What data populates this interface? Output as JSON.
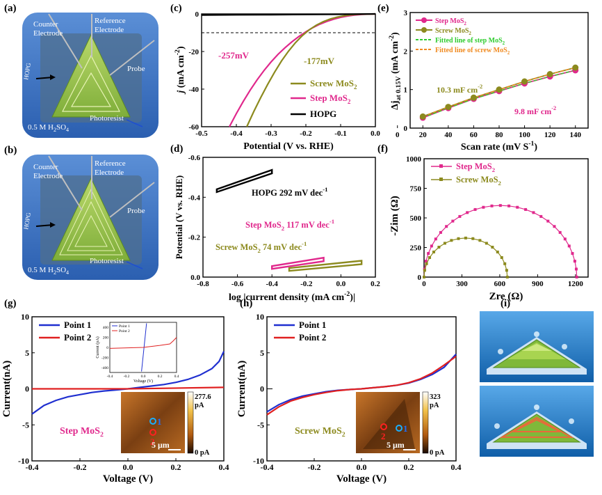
{
  "panel_labels": {
    "a": "(a)",
    "b": "(b)",
    "c": "(c)",
    "d": "(d)",
    "e": "(e)",
    "f": "(f)",
    "g": "(g)",
    "h": "(h)",
    "i": "(i)"
  },
  "cell_a": {
    "counter": "Counter",
    "electrode": "Electrode",
    "reference": "Reference",
    "ref_electrode": "Electrode",
    "probe": "Probe",
    "hopg": "HOPG",
    "photoresist": "Photoresist",
    "electrolyte_a": "0.5 M H",
    "electrolyte_sub": "2",
    "electrolyte_b": "SO",
    "electrolyte_sub2": "4"
  },
  "colors": {
    "step": "#e0288c",
    "screw": "#8c8a1e",
    "hopg": "#000000",
    "blue": "#1f2fd0",
    "red": "#e02020",
    "fit_step": "#2ecc2e",
    "fit_screw": "#f08a20"
  },
  "chart_data": [
    {
      "id": "c",
      "type": "line",
      "xlabel": "Potential (V vs. RHE)",
      "ylabel_main": "j",
      "ylabel_unit": "(mA cm",
      "ylabel_exp": "-2",
      "ylabel_close": ")",
      "xlim": [
        -0.5,
        0.0
      ],
      "ylim": [
        -60,
        0
      ],
      "xticks": [
        "-0.5",
        "-0.4",
        "-0.3",
        "-0.2",
        "-0.1",
        "0.0"
      ],
      "yticks": [
        "0",
        "-20",
        "-40",
        "-60"
      ],
      "annotations": [
        "-257mV",
        "-177mV"
      ],
      "legend": [
        {
          "name": "Screw  MoS",
          "sub": "2"
        },
        {
          "name": "Step  MoS",
          "sub": "2"
        },
        {
          "name": "HOPG",
          "sub": ""
        }
      ],
      "series": [
        {
          "name": "Step MoS2",
          "x": [
            -0.42,
            -0.4,
            -0.38,
            -0.36,
            -0.34,
            -0.32,
            -0.3,
            -0.28,
            -0.26,
            -0.24,
            -0.22,
            -0.2,
            -0.18,
            -0.16,
            -0.14,
            -0.12,
            -0.1,
            -0.08,
            -0.06,
            -0.04,
            -0.02,
            0.0
          ],
          "y": [
            -60,
            -53,
            -46.5,
            -40.5,
            -35,
            -30,
            -25.5,
            -21.5,
            -18,
            -14.8,
            -12,
            -9.5,
            -7.3,
            -5.5,
            -4,
            -2.8,
            -1.8,
            -1.1,
            -0.6,
            -0.3,
            -0.1,
            0
          ]
        },
        {
          "name": "Screw MoS2",
          "x": [
            -0.37,
            -0.35,
            -0.33,
            -0.31,
            -0.29,
            -0.27,
            -0.25,
            -0.23,
            -0.21,
            -0.19,
            -0.17,
            -0.15,
            -0.13,
            -0.11,
            -0.09,
            -0.07,
            -0.05,
            -0.03,
            0.0
          ],
          "y": [
            -60,
            -52,
            -44.5,
            -37.5,
            -31,
            -25,
            -19.8,
            -15.3,
            -11.5,
            -8.4,
            -6,
            -4.1,
            -2.7,
            -1.7,
            -1,
            -0.5,
            -0.2,
            -0.1,
            0
          ]
        },
        {
          "name": "HOPG",
          "x": [
            -0.5,
            -0.4,
            -0.3,
            -0.2,
            -0.1,
            0.0
          ],
          "y": [
            -0.6,
            -0.5,
            -0.4,
            -0.3,
            -0.2,
            0
          ]
        }
      ],
      "dashed_y": -10
    },
    {
      "id": "d",
      "type": "line",
      "xlabel": "log |current density (mA cm",
      "xlabel_exp": "-2",
      "xlabel_close": ")|",
      "ylabel": "Potential (V vs. RHE)",
      "xlim": [
        -0.8,
        0.2
      ],
      "ylim": [
        -0.6,
        0.0
      ],
      "xticks": [
        "-0.8",
        "-0.6",
        "-0.4",
        "-0.2",
        "0.0",
        "0.2"
      ],
      "yticks": [
        "-0.6",
        "-0.4",
        "-0.2",
        "0.0"
      ],
      "annotations": [
        {
          "t": "HOPG 292 mV dec",
          "e": "-1"
        },
        {
          "t": "Step  MoS",
          "s": "2",
          "t2": " 117 mV dec",
          "e": "-1"
        },
        {
          "t": "Screw  MoS",
          "s": "2",
          "t2": " 74 mV dec",
          "e": "-1"
        }
      ],
      "series": [
        {
          "name": "HOPG",
          "x": [
            -0.72,
            -0.4
          ],
          "y": [
            -0.44,
            -0.53
          ]
        },
        {
          "name": "Step MoS2",
          "x": [
            -0.4,
            -0.1
          ],
          "y": [
            -0.055,
            -0.09
          ]
        },
        {
          "name": "Screw MoS2",
          "x": [
            -0.3,
            0.12
          ],
          "y": [
            -0.045,
            -0.075
          ]
        }
      ]
    },
    {
      "id": "e",
      "type": "scatter",
      "xlabel": "Scan rate (mV S",
      "xlabel_exp": "-1",
      "xlabel_close": ")",
      "ylabel_main": "Δj",
      "ylabel_sub": "at 0.15V",
      "ylabel_unit": " (mA cm",
      "ylabel_exp": "-2",
      "ylabel_close": ")",
      "xlim": [
        0,
        150
      ],
      "ylim": [
        0,
        3
      ],
      "xticks": [
        "0",
        "20",
        "40",
        "60",
        "80",
        "100",
        "120",
        "140"
      ],
      "yticks": [
        "0",
        "1",
        "2",
        "3"
      ],
      "annotations": [
        {
          "t": "10.3 mF cm",
          "e": "-2"
        },
        {
          "t": "9.8 mF cm",
          "e": "-2"
        }
      ],
      "legend": [
        {
          "name": "Step MoS",
          "sub": "2"
        },
        {
          "name": "Screw MoS",
          "sub": "2"
        },
        {
          "name": "Fitted line of step MoS",
          "sub": "2"
        },
        {
          "name": "Fitted line of screw MoS",
          "sub": "2"
        }
      ],
      "x": [
        20,
        40,
        60,
        80,
        100,
        120,
        140
      ],
      "series": [
        {
          "name": "Step MoS2",
          "y": [
            0.27,
            0.52,
            0.76,
            0.96,
            1.16,
            1.34,
            1.5
          ]
        },
        {
          "name": "Screw MoS2",
          "y": [
            0.3,
            0.55,
            0.79,
            1.0,
            1.21,
            1.4,
            1.57
          ]
        }
      ]
    },
    {
      "id": "f",
      "type": "scatter",
      "xlabel": "Zre",
      "xlabel_unit": "(Ω)",
      "ylabel": "-Zim",
      "ylabel_unit": "(Ω)",
      "xlim": [
        0,
        1300
      ],
      "ylim": [
        0,
        1000
      ],
      "xticks": [
        "0",
        "300",
        "600",
        "900",
        "1200"
      ],
      "yticks": [
        "0",
        "250",
        "500",
        "750",
        "1000"
      ],
      "legend": [
        {
          "name": "Step MoS",
          "sub": "2"
        },
        {
          "name": "Screw MoS",
          "sub": "2"
        }
      ],
      "series": [
        {
          "name": "Step MoS2",
          "center": 605,
          "radius": 605,
          "npts": 28
        },
        {
          "name": "Screw MoS2",
          "center": 330,
          "radius": 330,
          "npts": 18
        }
      ]
    },
    {
      "id": "g",
      "type": "line",
      "xlabel": "Voltage (V)",
      "ylabel": "Current(nA)",
      "xlim": [
        -0.4,
        0.4
      ],
      "ylim": [
        -10,
        10
      ],
      "xticks": [
        "-0.4",
        "-0.2",
        "0.0",
        "0.2",
        "0.4"
      ],
      "yticks": [
        "10",
        "5",
        "0",
        "-5",
        "-10"
      ],
      "legend": [
        {
          "name": "Point 1"
        },
        {
          "name": "Point 2"
        }
      ],
      "label": {
        "t": "Step MoS",
        "s": "2"
      },
      "series": [
        {
          "name": "Point 1",
          "x": [
            -0.4,
            -0.35,
            -0.3,
            -0.25,
            -0.2,
            -0.15,
            -0.1,
            -0.05,
            0.0,
            0.05,
            0.1,
            0.15,
            0.2,
            0.25,
            0.3,
            0.35,
            0.38,
            0.4
          ],
          "y": [
            -3.5,
            -2.3,
            -1.6,
            -1.1,
            -0.8,
            -0.5,
            -0.3,
            -0.15,
            0.0,
            0.2,
            0.4,
            0.6,
            0.9,
            1.3,
            1.9,
            2.8,
            3.8,
            5.2
          ]
        },
        {
          "name": "Point 2",
          "x": [
            -0.4,
            0.0,
            0.4
          ],
          "y": [
            0.0,
            0.0,
            0.2
          ]
        }
      ],
      "inset_plot": {
        "xlabel": "Voltage (V)",
        "ylabel": "Current (pA)",
        "xticks": [
          "-0.4",
          "-0.2",
          "0.0",
          "0.2",
          "0.4"
        ],
        "yticks": [
          "400",
          "200",
          "0",
          "-200",
          "-400"
        ],
        "legend": [
          {
            "name": "Point 1"
          },
          {
            "name": "Point 2"
          }
        ],
        "p1": {
          "x": [
            -0.02,
            0.04
          ],
          "y": [
            -480,
            480
          ]
        },
        "p2": {
          "x": [
            -0.4,
            0.0,
            0.2,
            0.32,
            0.36,
            0.4
          ],
          "y": [
            -20,
            0,
            40,
            70,
            130,
            200
          ]
        }
      },
      "image_inset": {
        "max": "277.6",
        "max_unit": "pA",
        "min": "0 pA",
        "scale": "5 μm",
        "p1": "1",
        "p2": "2"
      }
    },
    {
      "id": "h",
      "type": "line",
      "xlabel": "Voltage (V)",
      "ylabel": "Current(nA)",
      "xlim": [
        -0.4,
        0.4
      ],
      "ylim": [
        -10,
        10
      ],
      "xticks": [
        "-0.4",
        "-0.2",
        "0.0",
        "0.2",
        "0.4"
      ],
      "yticks": [
        "10",
        "5",
        "0",
        "-5",
        "-10"
      ],
      "legend": [
        {
          "name": "Point 1"
        },
        {
          "name": "Point 2"
        }
      ],
      "label": {
        "t": "Screw MoS",
        "s": "2"
      },
      "series": [
        {
          "name": "Point 1",
          "x": [
            -0.4,
            -0.35,
            -0.3,
            -0.25,
            -0.2,
            -0.15,
            -0.1,
            -0.05,
            0.0,
            0.05,
            0.1,
            0.15,
            0.2,
            0.25,
            0.3,
            0.35,
            0.4
          ],
          "y": [
            -3.2,
            -2.2,
            -1.5,
            -1.0,
            -0.7,
            -0.4,
            -0.2,
            -0.1,
            0.0,
            0.15,
            0.3,
            0.5,
            0.8,
            1.3,
            2.0,
            3.0,
            4.8
          ]
        },
        {
          "name": "Point 2",
          "x": [
            -0.4,
            -0.35,
            -0.3,
            -0.25,
            -0.2,
            -0.15,
            -0.1,
            -0.05,
            0.0,
            0.05,
            0.1,
            0.15,
            0.2,
            0.25,
            0.3,
            0.35,
            0.4
          ],
          "y": [
            -3.6,
            -2.5,
            -1.7,
            -1.2,
            -0.8,
            -0.5,
            -0.25,
            -0.1,
            0.0,
            0.15,
            0.3,
            0.5,
            0.85,
            1.4,
            2.2,
            3.3,
            4.5
          ]
        }
      ],
      "image_inset": {
        "max": "323",
        "max_unit": "pA",
        "min": "0 pA",
        "scale": "5 μm",
        "p1": "1",
        "p2": "2"
      }
    }
  ]
}
